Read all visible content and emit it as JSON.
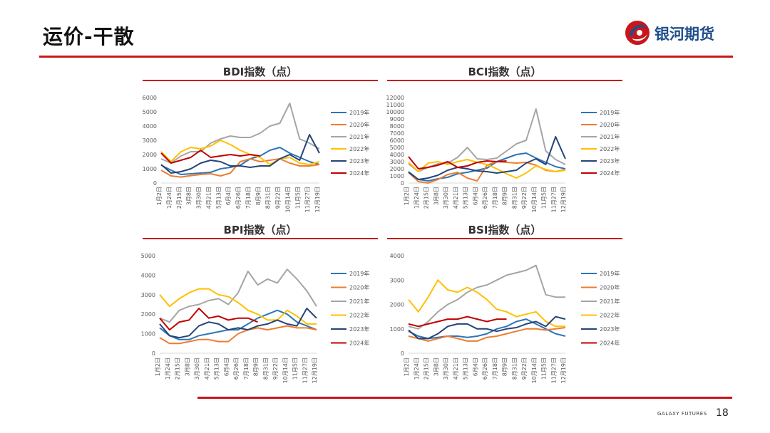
{
  "header": {
    "title": "运价-干散",
    "logo_text": "银河期货"
  },
  "footer": {
    "brand": "GALAXY FUTURES",
    "page_number": "18"
  },
  "colors": {
    "accent": "#c8161d",
    "logo_blue": "#1f4e8c",
    "series": {
      "2019年": "#2e75b6",
      "2020年": "#ed7d31",
      "2021年": "#a5a5a5",
      "2022年": "#ffc000",
      "2023年": "#264478",
      "2024年": "#c00000"
    }
  },
  "chart_data": [
    {
      "type": "line",
      "title": "BDI指数（点）",
      "yticks": [
        "0",
        "1000",
        "2000",
        "3000",
        "4000",
        "5000",
        "6000"
      ],
      "ylim": [
        0,
        6000
      ],
      "x_ticks": [
        "1月2日",
        "1月24日",
        "2月15日",
        "3月8日",
        "3月30日",
        "4月21日",
        "5月13日",
        "6月4日",
        "6月26日",
        "7月18日",
        "8月9日",
        "8月31日",
        "9月22日",
        "10月14日",
        "11月5日",
        "11月27日",
        "12月19日"
      ],
      "legend_position": "right",
      "series": [
        {
          "name": "2019年",
          "values": [
            1250,
            900,
            600,
            650,
            700,
            750,
            1000,
            1100,
            1250,
            1700,
            1900,
            2300,
            2500,
            2100,
            1800,
            1500,
            1300
          ]
        },
        {
          "name": "2020年",
          "values": [
            900,
            500,
            420,
            520,
            600,
            650,
            500,
            700,
            1500,
            1700,
            1500,
            1600,
            1700,
            1400,
            1200,
            1200,
            1300
          ]
        },
        {
          "name": "2021年",
          "values": [
            1700,
            1400,
            1900,
            2200,
            2200,
            2800,
            3100,
            3300,
            3200,
            3200,
            3500,
            4000,
            4200,
            5600,
            3100,
            2800,
            2400
          ]
        },
        {
          "name": "2022年",
          "values": [
            2200,
            1500,
            2200,
            2500,
            2400,
            2600,
            3000,
            2700,
            2300,
            2000,
            1800,
            1300,
            1700,
            1800,
            1400,
            1300,
            1500
          ]
        },
        {
          "name": "2023年",
          "values": [
            1300,
            700,
            800,
            1000,
            1400,
            1600,
            1500,
            1200,
            1200,
            1100,
            1200,
            1200,
            1700,
            2000,
            1600,
            3400,
            2100
          ]
        },
        {
          "name": "2024年",
          "values": [
            2100,
            1400,
            1600,
            1800,
            2300,
            1800,
            1900,
            2000,
            1900,
            2000,
            1900,
            null,
            null,
            null,
            null,
            null,
            null
          ]
        }
      ]
    },
    {
      "type": "line",
      "title": "BCI指数（点）",
      "yticks": [
        "0",
        "1000",
        "2000",
        "3000",
        "4000",
        "5000",
        "6000",
        "7000",
        "8000",
        "9000",
        "10000",
        "11000",
        "12000"
      ],
      "ylim": [
        0,
        12000
      ],
      "x_ticks": [
        "1月2日",
        "1月24日",
        "2月15日",
        "3月8日",
        "3月30日",
        "4月21日",
        "5月13日",
        "6月4日",
        "6月26日",
        "7月18日",
        "8月9日",
        "8月31日",
        "9月22日",
        "10月14日",
        "11月5日",
        "11月27日",
        "12月19日"
      ],
      "legend_position": "right",
      "series": [
        {
          "name": "2019年",
          "values": [
            1600,
            500,
            300,
            600,
            800,
            1300,
            1500,
            1800,
            2100,
            3000,
            3500,
            4000,
            4200,
            3500,
            2900,
            2300,
            2000
          ]
        },
        {
          "name": "2020年",
          "values": [
            1500,
            200,
            -100,
            500,
            1200,
            1500,
            700,
            300,
            2500,
            3000,
            2900,
            2800,
            2900,
            2500,
            1800,
            1600,
            1900
          ]
        },
        {
          "name": "2021年",
          "values": [
            2700,
            1600,
            2200,
            2700,
            2800,
            3600,
            5000,
            3400,
            3300,
            3500,
            4500,
            5500,
            6000,
            10400,
            4500,
            3300,
            2600
          ]
        },
        {
          "name": "2022年",
          "values": [
            2900,
            1600,
            2800,
            3000,
            2600,
            3000,
            3300,
            2900,
            2600,
            2000,
            1300,
            700,
            1400,
            2400,
            1900,
            1600,
            1800
          ]
        },
        {
          "name": "2023年",
          "values": [
            1500,
            500,
            700,
            1100,
            1800,
            2200,
            2000,
            1700,
            1600,
            1400,
            1600,
            1800,
            2800,
            3400,
            2600,
            6500,
            3400
          ]
        },
        {
          "name": "2024年",
          "values": [
            3700,
            2000,
            2200,
            2500,
            3000,
            2200,
            2400,
            2900,
            3100,
            3000,
            3100,
            null,
            null,
            null,
            null,
            null,
            null
          ]
        }
      ]
    },
    {
      "type": "line",
      "title": "BPI指数（点）",
      "yticks": [
        "0",
        "1000",
        "2000",
        "3000",
        "4000",
        "5000"
      ],
      "ylim": [
        0,
        5000
      ],
      "x_ticks": [
        "1月2日",
        "1月24日",
        "2月15日",
        "3月8日",
        "3月30日",
        "4月21日",
        "5月13日",
        "6月4日",
        "6月26日",
        "7月18日",
        "8月9日",
        "8月31日",
        "9月22日",
        "10月14日",
        "11月5日",
        "11月27日",
        "12月19日"
      ],
      "legend_position": "right",
      "series": [
        {
          "name": "2019年",
          "values": [
            1300,
            900,
            700,
            700,
            900,
            1000,
            1100,
            1200,
            1200,
            1500,
            1800,
            2000,
            2200,
            2000,
            1600,
            1400,
            1200
          ]
        },
        {
          "name": "2020年",
          "values": [
            800,
            500,
            500,
            600,
            700,
            700,
            600,
            600,
            1000,
            1200,
            1300,
            1200,
            1300,
            1400,
            1300,
            1300,
            1200
          ]
        },
        {
          "name": "2021年",
          "values": [
            1800,
            1600,
            2200,
            2400,
            2500,
            2700,
            2800,
            2500,
            3100,
            4200,
            3500,
            3800,
            3600,
            4300,
            3800,
            3200,
            2400
          ]
        },
        {
          "name": "2022年",
          "values": [
            3000,
            2400,
            2800,
            3100,
            3300,
            3300,
            3000,
            2900,
            2600,
            2200,
            2000,
            1700,
            1700,
            2200,
            1900,
            1500,
            1500
          ]
        },
        {
          "name": "2023年",
          "values": [
            1500,
            900,
            800,
            900,
            1400,
            1600,
            1500,
            1200,
            1300,
            1200,
            1400,
            1500,
            1700,
            1500,
            1400,
            2300,
            1800
          ]
        },
        {
          "name": "2024年",
          "values": [
            1800,
            1200,
            1600,
            1700,
            2300,
            1800,
            1900,
            1700,
            1800,
            1800,
            1600,
            null,
            null,
            null,
            null,
            null,
            null
          ]
        }
      ]
    },
    {
      "type": "line",
      "title": "BSI指数（点）",
      "yticks": [
        "0",
        "1000",
        "2000",
        "3000",
        "4000"
      ],
      "ylim": [
        0,
        4000
      ],
      "x_ticks": [
        "1月2日",
        "1月24日",
        "2月15日",
        "3月8日",
        "3月30日",
        "4月21日",
        "5月13日",
        "6月4日",
        "6月26日",
        "7月18日",
        "8月9日",
        "8月31日",
        "9月22日",
        "10月14日",
        "11月5日",
        "11月27日",
        "12月19日"
      ],
      "legend_position": "right",
      "series": [
        {
          "name": "2019年",
          "values": [
            900,
            700,
            600,
            650,
            700,
            700,
            650,
            700,
            800,
            1000,
            1100,
            1300,
            1400,
            1200,
            1000,
            800,
            700
          ]
        },
        {
          "name": "2020年",
          "values": [
            700,
            600,
            500,
            600,
            700,
            600,
            500,
            500,
            650,
            700,
            800,
            900,
            1000,
            1000,
            950,
            1000,
            1050
          ]
        },
        {
          "name": "2021年",
          "values": [
            1100,
            1000,
            1300,
            1700,
            2000,
            2200,
            2500,
            2700,
            2800,
            3000,
            3200,
            3300,
            3400,
            3600,
            2400,
            2300,
            2300
          ]
        },
        {
          "name": "2022年",
          "values": [
            2200,
            1700,
            2300,
            3000,
            2600,
            2500,
            2700,
            2500,
            2200,
            1800,
            1700,
            1500,
            1600,
            1700,
            1300,
            1100,
            1100
          ]
        },
        {
          "name": "2023年",
          "values": [
            950,
            600,
            600,
            800,
            1100,
            1200,
            1200,
            1000,
            1000,
            900,
            1000,
            1050,
            1200,
            1300,
            1100,
            1500,
            1400
          ]
        },
        {
          "name": "2024年",
          "values": [
            1200,
            1100,
            1200,
            1300,
            1400,
            1400,
            1500,
            1400,
            1300,
            1400,
            1400,
            null,
            null,
            null,
            null,
            null,
            null
          ]
        }
      ]
    }
  ]
}
